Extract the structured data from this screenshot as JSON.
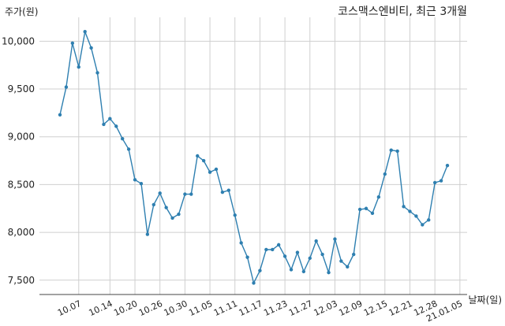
{
  "chart_data": {
    "type": "line",
    "title": "코스맥스엔비티, 최근 3개월",
    "ylabel": "주가(원)",
    "xlabel": "날짜(일)",
    "ylim": [
      7350,
      10250
    ],
    "yticks": [
      7500,
      8000,
      8500,
      9000,
      9500,
      10000
    ],
    "ytick_labels": [
      "7,500",
      "8,000",
      "8,500",
      "9,000",
      "9,500",
      "10,000"
    ],
    "xtick_labels": [
      "10.07",
      "10.14",
      "10.20",
      "10.26",
      "10.30",
      "11.05",
      "11.11",
      "11.17",
      "11.23",
      "11.27",
      "12.03",
      "12.09",
      "12.15",
      "12.21",
      "12.28",
      "21.01.05"
    ],
    "xtick_positions": [
      3,
      8,
      12,
      16,
      20,
      24,
      28,
      32,
      36,
      40,
      44,
      48,
      52,
      56,
      60,
      64
    ],
    "grid": true,
    "line_color": "#2e7fb0",
    "series": [
      {
        "values": [
          9230,
          9520,
          9980,
          9730,
          10100,
          9930,
          9670,
          9130,
          9190,
          9110,
          8980,
          8870,
          8550,
          8510,
          7980,
          8290,
          8410,
          8260,
          8150,
          8190,
          8400,
          8400,
          8800,
          8750,
          8630,
          8660,
          8420,
          8440,
          8180,
          7890,
          7740,
          7470,
          7600,
          7820,
          7820,
          7870,
          7750,
          7610,
          7790,
          7590,
          7730,
          7910,
          7770,
          7580,
          7930,
          7700,
          7640,
          7770,
          8240,
          8250,
          8200,
          8370,
          8610,
          8860,
          8850,
          8270,
          8220,
          8170,
          8080,
          8130,
          8520,
          8540,
          8700
        ]
      }
    ]
  }
}
